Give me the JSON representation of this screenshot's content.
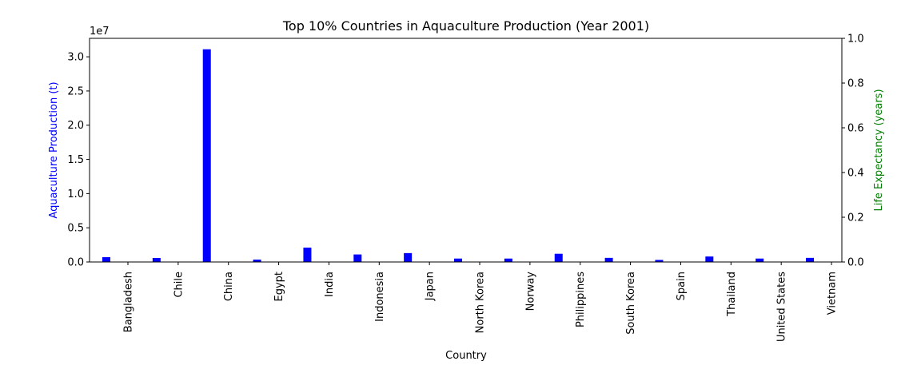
{
  "chart_data": {
    "type": "bar",
    "title": "Top 10% Countries in Aquaculture Production (Year 2001)",
    "x_label": "Country",
    "y_label": "Aquaculture Production (t)",
    "y2_label": "Life Expectancy (years)",
    "y_offset_label": "1e7",
    "categories": [
      "Bangladesh",
      "Chile",
      "China",
      "Egypt",
      "India",
      "Indonesia",
      "Japan",
      "North Korea",
      "Norway",
      "Philippines",
      "South Korea",
      "Spain",
      "Thailand",
      "United States",
      "Vietnam"
    ],
    "values": [
      700000,
      580000,
      31100000,
      350000,
      2100000,
      1100000,
      1300000,
      500000,
      500000,
      1200000,
      600000,
      300000,
      800000,
      500000,
      600000
    ],
    "color": "#0000ff",
    "y_label_color": "#0000ff",
    "y2_label_color": "#008000",
    "ylim": [
      0,
      32700000
    ],
    "yticks": [
      {
        "value": 0,
        "label": "0.0"
      },
      {
        "value": 5000000,
        "label": "0.5"
      },
      {
        "value": 10000000,
        "label": "1.0"
      },
      {
        "value": 15000000,
        "label": "1.5"
      },
      {
        "value": 20000000,
        "label": "2.0"
      },
      {
        "value": 25000000,
        "label": "2.5"
      },
      {
        "value": 30000000,
        "label": "3.0"
      }
    ],
    "y2lim": [
      0,
      1
    ],
    "y2ticks": [
      {
        "value": 0,
        "label": "0.0"
      },
      0.2,
      0.4,
      0.6,
      0.8,
      {
        "value": 1,
        "label": "1.0"
      }
    ]
  }
}
